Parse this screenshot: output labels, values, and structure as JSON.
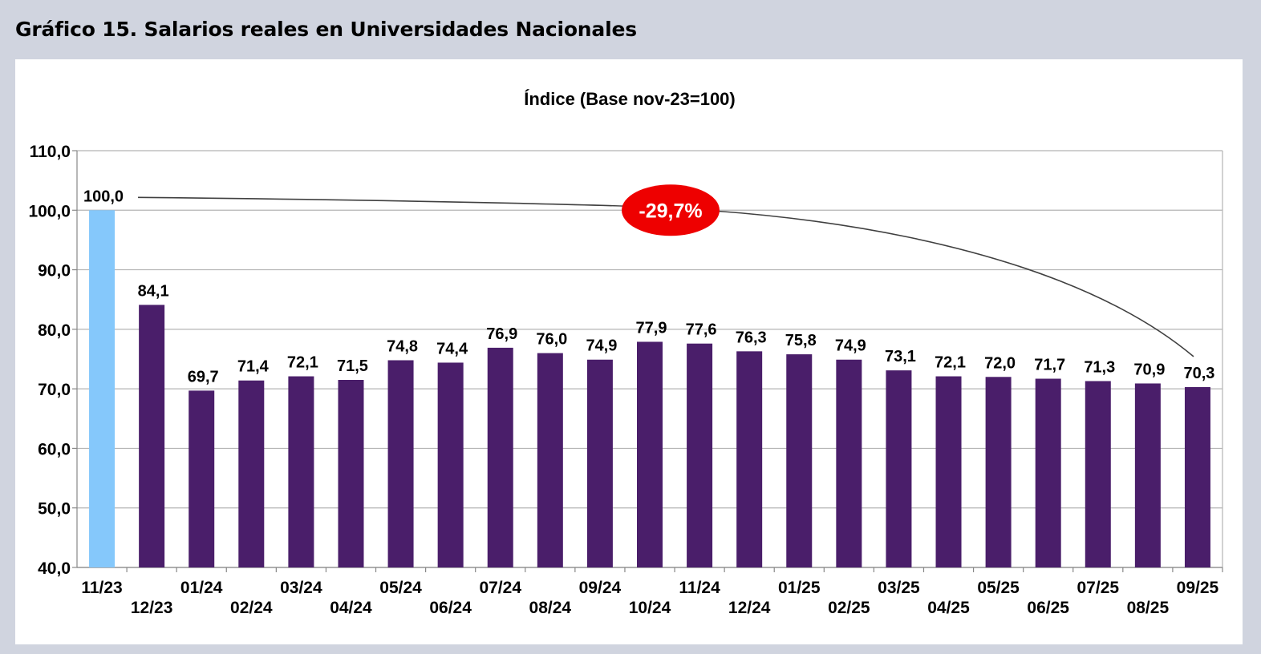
{
  "figure_title": "Gráfico 15. Salarios reales en Universidades Nacionales",
  "chart_data": {
    "type": "bar",
    "title": "Índice (Base nov-23=100)",
    "xlabel": "",
    "ylabel": "",
    "ylim": [
      40,
      110
    ],
    "yticks": [
      "40,0",
      "50,0",
      "60,0",
      "70,0",
      "80,0",
      "90,0",
      "100,0",
      "110,0"
    ],
    "grid": true,
    "legend": "none",
    "categories": [
      "11/23",
      "12/23",
      "01/24",
      "02/24",
      "03/24",
      "04/24",
      "05/24",
      "06/24",
      "07/24",
      "08/24",
      "09/24",
      "10/24",
      "11/24",
      "12/24",
      "01/25",
      "02/25",
      "03/25",
      "04/25",
      "05/25",
      "06/25",
      "07/25",
      "08/25",
      "09/25"
    ],
    "values": [
      100.0,
      84.1,
      69.7,
      71.4,
      72.1,
      71.5,
      74.8,
      74.4,
      76.9,
      76.0,
      74.9,
      77.9,
      77.6,
      76.3,
      75.8,
      74.9,
      73.1,
      72.1,
      72.0,
      71.7,
      71.3,
      70.9,
      70.3
    ],
    "data_labels": [
      "100,0",
      "84,1",
      "69,7",
      "71,4",
      "72,1",
      "71,5",
      "74,8",
      "74,4",
      "76,9",
      "76,0",
      "74,9",
      "77,9",
      "77,6",
      "76,3",
      "75,8",
      "74,9",
      "73,1",
      "72,1",
      "72,0",
      "71,7",
      "71,3",
      "70,9",
      "70,3"
    ],
    "annotation": {
      "text": "-29,7%",
      "from_category": "11/23",
      "to_category": "09/25"
    },
    "colors": {
      "base_bar": "#85c8fb",
      "bar": "#4a1e6a",
      "annotation_fill": "#ee0000",
      "annotation_text": "#ffffff",
      "grid": "#b5b5b5",
      "axis": "#888888",
      "curve": "#404040"
    }
  }
}
